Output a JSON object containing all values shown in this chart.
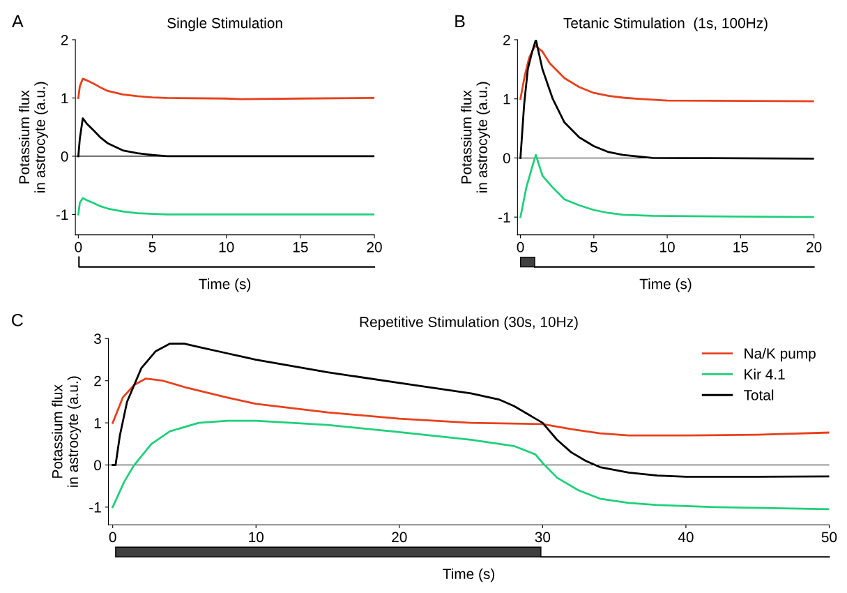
{
  "chart_data": [
    {
      "type": "line",
      "title": "Single Stimulation",
      "xlabel": "Time (s)",
      "ylabel": "Potassium flux\nin astrocyte (a.u.)",
      "annotations": [
        "A"
      ],
      "xlim": [
        -0.2,
        20
      ],
      "xticks": [
        0,
        5,
        10,
        15,
        20
      ],
      "ylim": [
        -1.35,
        2
      ],
      "yticks": [
        -1,
        0,
        1,
        2
      ],
      "grid": false,
      "legend": false,
      "ref_lines": [
        {
          "axis": "y",
          "value": 0,
          "color": "#000000"
        }
      ],
      "series": [
        {
          "color": "#e8401c",
          "x": [
            0,
            0.1,
            0.3,
            0.6,
            1,
            1.5,
            2,
            3,
            4,
            5,
            6,
            10,
            11,
            15,
            20
          ],
          "values": [
            1.0,
            1.2,
            1.33,
            1.3,
            1.25,
            1.18,
            1.12,
            1.06,
            1.03,
            1.01,
            1.0,
            0.99,
            0.98,
            0.99,
            1.0
          ]
        },
        {
          "color": "#1fd07a",
          "x": [
            0,
            0.1,
            0.3,
            0.6,
            1,
            1.5,
            2,
            3,
            4,
            6,
            20
          ],
          "values": [
            -1.0,
            -0.8,
            -0.72,
            -0.76,
            -0.8,
            -0.86,
            -0.9,
            -0.95,
            -0.98,
            -1.0,
            -1.0
          ]
        },
        {
          "color": "#000000",
          "x": [
            0,
            0.1,
            0.3,
            0.6,
            1,
            1.5,
            2,
            3,
            4,
            5,
            6,
            20
          ],
          "values": [
            0.0,
            0.3,
            0.65,
            0.55,
            0.45,
            0.32,
            0.22,
            0.1,
            0.05,
            0.02,
            0.0,
            0.0
          ]
        }
      ]
    },
    {
      "type": "line",
      "title": "Tetanic Stimulation  (1s, 100Hz)",
      "xlabel": "Time (s)",
      "ylabel": "Potassium flux\nin astrocyte (a.u.)",
      "annotations": [
        "B"
      ],
      "xlim": [
        -0.2,
        20
      ],
      "xticks": [
        0,
        5,
        10,
        15,
        20
      ],
      "ylim": [
        -1.3,
        2
      ],
      "yticks": [
        -1,
        0,
        1,
        2
      ],
      "grid": false,
      "legend": false,
      "ref_lines": [
        {
          "axis": "y",
          "value": 0,
          "color": "#000000"
        }
      ],
      "series": [
        {
          "color": "#e8401c",
          "x": [
            0,
            0.3,
            0.6,
            1.0,
            1.5,
            2,
            3,
            4,
            5,
            6,
            7,
            8,
            10,
            20
          ],
          "values": [
            1.0,
            1.4,
            1.7,
            1.9,
            1.8,
            1.6,
            1.35,
            1.2,
            1.1,
            1.05,
            1.02,
            1.0,
            0.97,
            0.96
          ]
        },
        {
          "color": "#1fd07a",
          "x": [
            0,
            0.4,
            0.8,
            1.05,
            1.5,
            2.2,
            3,
            4,
            5,
            6,
            7,
            9,
            20
          ],
          "values": [
            -1.0,
            -0.5,
            -0.15,
            0.05,
            -0.3,
            -0.5,
            -0.7,
            -0.8,
            -0.88,
            -0.93,
            -0.96,
            -0.98,
            -1.0
          ]
        },
        {
          "color": "#000000",
          "x": [
            0,
            0.25,
            0.5,
            0.8,
            1.05,
            1.5,
            2.2,
            3,
            4,
            5,
            6,
            7,
            9,
            20
          ],
          "values": [
            0.0,
            0.9,
            1.5,
            1.8,
            2.0,
            1.5,
            1.0,
            0.6,
            0.35,
            0.2,
            0.1,
            0.05,
            0.0,
            -0.01
          ]
        }
      ]
    },
    {
      "type": "line",
      "title": "Repetitive Stimulation (30s, 10Hz)",
      "xlabel": "Time (s)",
      "ylabel": "Potassium flux\nin astrocyte (a.u.)",
      "annotations": [
        "C"
      ],
      "xlim": [
        -0.3,
        50
      ],
      "xticks": [
        0,
        10,
        20,
        30,
        40,
        50
      ],
      "ylim": [
        -1.42,
        3
      ],
      "yticks": [
        -1,
        0,
        1,
        2,
        3
      ],
      "grid": false,
      "legend": "top right",
      "ref_lines": [
        {
          "axis": "y",
          "value": 0,
          "color": "#000000"
        }
      ],
      "series": [
        {
          "name": "Na/K pump",
          "color": "#e8401c",
          "x": [
            0,
            0.7,
            1.5,
            2.3,
            3.5,
            5,
            8,
            10,
            15,
            20,
            25,
            30,
            32,
            34,
            36,
            40,
            45,
            50
          ],
          "values": [
            1.0,
            1.6,
            1.9,
            2.05,
            2.0,
            1.85,
            1.6,
            1.45,
            1.25,
            1.1,
            1.0,
            0.97,
            0.85,
            0.75,
            0.7,
            0.7,
            0.72,
            0.77
          ]
        },
        {
          "name": "Kir 4.1",
          "color": "#1fd07a",
          "x": [
            0,
            0.8,
            1.5,
            2.7,
            4,
            6,
            8,
            10,
            15,
            20,
            25,
            28,
            29.5,
            30,
            31,
            32.5,
            34,
            36,
            38,
            42,
            50
          ],
          "values": [
            -1.0,
            -0.4,
            0.0,
            0.5,
            0.8,
            1.0,
            1.05,
            1.05,
            0.95,
            0.78,
            0.6,
            0.45,
            0.25,
            0.05,
            -0.3,
            -0.6,
            -0.8,
            -0.9,
            -0.95,
            -1.0,
            -1.05
          ]
        },
        {
          "name": "Total",
          "color": "#000000",
          "x": [
            0,
            0.2,
            0.5,
            1,
            2,
            3,
            4,
            5,
            6,
            8,
            10,
            15,
            20,
            25,
            27,
            28,
            29,
            30,
            31,
            32,
            33,
            34,
            36,
            38,
            40,
            45,
            50
          ],
          "values": [
            0.0,
            0.0,
            0.7,
            1.5,
            2.3,
            2.7,
            2.88,
            2.88,
            2.8,
            2.65,
            2.5,
            2.2,
            1.95,
            1.7,
            1.55,
            1.4,
            1.2,
            1.0,
            0.6,
            0.3,
            0.1,
            -0.05,
            -0.18,
            -0.25,
            -0.28,
            -0.28,
            -0.27
          ]
        }
      ]
    }
  ]
}
